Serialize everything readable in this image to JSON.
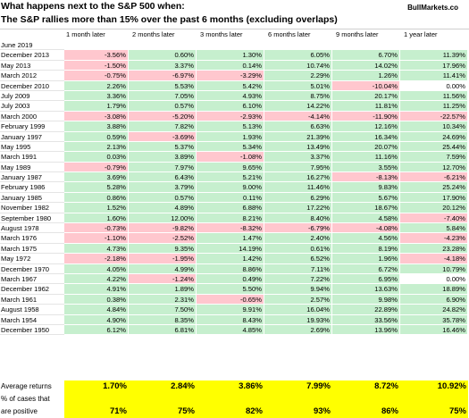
{
  "header": {
    "title_line1": "What happens next to the S&P 500 when:",
    "title_line2": "The S&P rallies more than 15% over the past 6 months (excluding overlaps)",
    "brand": "BullMarkets.co"
  },
  "columns": [
    "1 month later",
    "2 months later",
    "3 months later",
    "6 months later",
    "9 months later",
    "1 year later"
  ],
  "colors": {
    "positive": "#c6efce",
    "negative": "#ffc7ce",
    "blank": "#ffffff",
    "summary": "#ffff00"
  },
  "rows": [
    {
      "label": "June 2019",
      "values": [
        "",
        "",
        "",
        "",
        "",
        ""
      ]
    },
    {
      "label": "December 2013",
      "values": [
        "-3.56%",
        "0.60%",
        "1.30%",
        "6.05%",
        "6.70%",
        "11.39%"
      ]
    },
    {
      "label": "May 2013",
      "values": [
        "-1.50%",
        "3.37%",
        "0.14%",
        "10.74%",
        "14.02%",
        "17.96%"
      ]
    },
    {
      "label": "March 2012",
      "values": [
        "-0.75%",
        "-6.97%",
        "-3.29%",
        "2.29%",
        "1.26%",
        "11.41%"
      ]
    },
    {
      "label": "December 2010",
      "values": [
        "2.26%",
        "5.53%",
        "5.42%",
        "5.01%",
        "-10.04%",
        "0.00%"
      ]
    },
    {
      "label": "July 2009",
      "values": [
        "3.36%",
        "7.05%",
        "4.93%",
        "8.75%",
        "20.17%",
        "11.56%"
      ]
    },
    {
      "label": "July 2003",
      "values": [
        "1.79%",
        "0.57%",
        "6.10%",
        "14.22%",
        "11.81%",
        "11.25%"
      ]
    },
    {
      "label": "March 2000",
      "values": [
        "-3.08%",
        "-5.20%",
        "-2.93%",
        "-4.14%",
        "-11.90%",
        "-22.57%"
      ]
    },
    {
      "label": "February 1999",
      "values": [
        "3.88%",
        "7.82%",
        "5.13%",
        "6.63%",
        "12.16%",
        "10.34%"
      ]
    },
    {
      "label": "January 1997",
      "values": [
        "0.59%",
        "-3.69%",
        "1.93%",
        "21.39%",
        "16.34%",
        "24.69%"
      ]
    },
    {
      "label": "May 1995",
      "values": [
        "2.13%",
        "5.37%",
        "5.34%",
        "13.49%",
        "20.07%",
        "25.44%"
      ]
    },
    {
      "label": "March 1991",
      "values": [
        "0.03%",
        "3.89%",
        "-1.08%",
        "3.37%",
        "11.16%",
        "7.59%"
      ]
    },
    {
      "label": "May 1989",
      "values": [
        "-0.79%",
        "7.97%",
        "9.65%",
        "7.95%",
        "3.55%",
        "12.70%"
      ]
    },
    {
      "label": "January 1987",
      "values": [
        "3.69%",
        "6.43%",
        "5.21%",
        "16.27%",
        "-8.13%",
        "-6.21%"
      ]
    },
    {
      "label": "February 1986",
      "values": [
        "5.28%",
        "3.79%",
        "9.00%",
        "11.46%",
        "9.83%",
        "25.24%"
      ]
    },
    {
      "label": "January 1985",
      "values": [
        "0.86%",
        "0.57%",
        "0.11%",
        "6.29%",
        "5.67%",
        "17.90%"
      ]
    },
    {
      "label": "November 1982",
      "values": [
        "1.52%",
        "4.89%",
        "6.88%",
        "17.22%",
        "18.67%",
        "20.12%"
      ]
    },
    {
      "label": "September 1980",
      "values": [
        "1.60%",
        "12.00%",
        "8.21%",
        "8.40%",
        "4.58%",
        "-7.40%"
      ]
    },
    {
      "label": "August 1978",
      "values": [
        "-0.73%",
        "-9.82%",
        "-8.32%",
        "-6.79%",
        "-4.08%",
        "5.84%"
      ]
    },
    {
      "label": "March 1976",
      "values": [
        "-1.10%",
        "-2.52%",
        "1.47%",
        "2.40%",
        "4.56%",
        "-4.23%"
      ]
    },
    {
      "label": "March 1975",
      "values": [
        "4.73%",
        "9.35%",
        "14.19%",
        "0.61%",
        "8.19%",
        "23.28%"
      ]
    },
    {
      "label": "May 1972",
      "values": [
        "-2.18%",
        "-1.95%",
        "1.42%",
        "6.52%",
        "1.96%",
        "-4.18%"
      ]
    },
    {
      "label": "December 1970",
      "values": [
        "4.05%",
        "4.99%",
        "8.86%",
        "7.11%",
        "6.72%",
        "10.79%"
      ]
    },
    {
      "label": "March 1967",
      "values": [
        "4.22%",
        "-1.24%",
        "0.49%",
        "7.22%",
        "6.95%",
        "0.00%"
      ]
    },
    {
      "label": "December 1962",
      "values": [
        "4.91%",
        "1.89%",
        "5.50%",
        "9.94%",
        "13.63%",
        "18.89%"
      ]
    },
    {
      "label": "March 1961",
      "values": [
        "0.38%",
        "2.31%",
        "-0.65%",
        "2.57%",
        "9.98%",
        "6.90%"
      ]
    },
    {
      "label": "August 1958",
      "values": [
        "4.84%",
        "7.50%",
        "9.91%",
        "16.04%",
        "22.89%",
        "24.82%"
      ]
    },
    {
      "label": "March 1954",
      "values": [
        "4.90%",
        "8.35%",
        "8.43%",
        "19.93%",
        "33.56%",
        "35.78%"
      ]
    },
    {
      "label": "December 1950",
      "values": [
        "6.12%",
        "6.81%",
        "4.85%",
        "2.69%",
        "13.96%",
        "16.46%"
      ]
    }
  ],
  "summary": {
    "avg_label": "Average returns",
    "pct_label_line1": "% of cases that",
    "pct_label_line2": "are positive",
    "averages": [
      "1.70%",
      "2.84%",
      "3.86%",
      "7.99%",
      "8.72%",
      "10.92%"
    ],
    "percent_positive": [
      "71%",
      "75%",
      "82%",
      "93%",
      "86%",
      "75%"
    ]
  }
}
